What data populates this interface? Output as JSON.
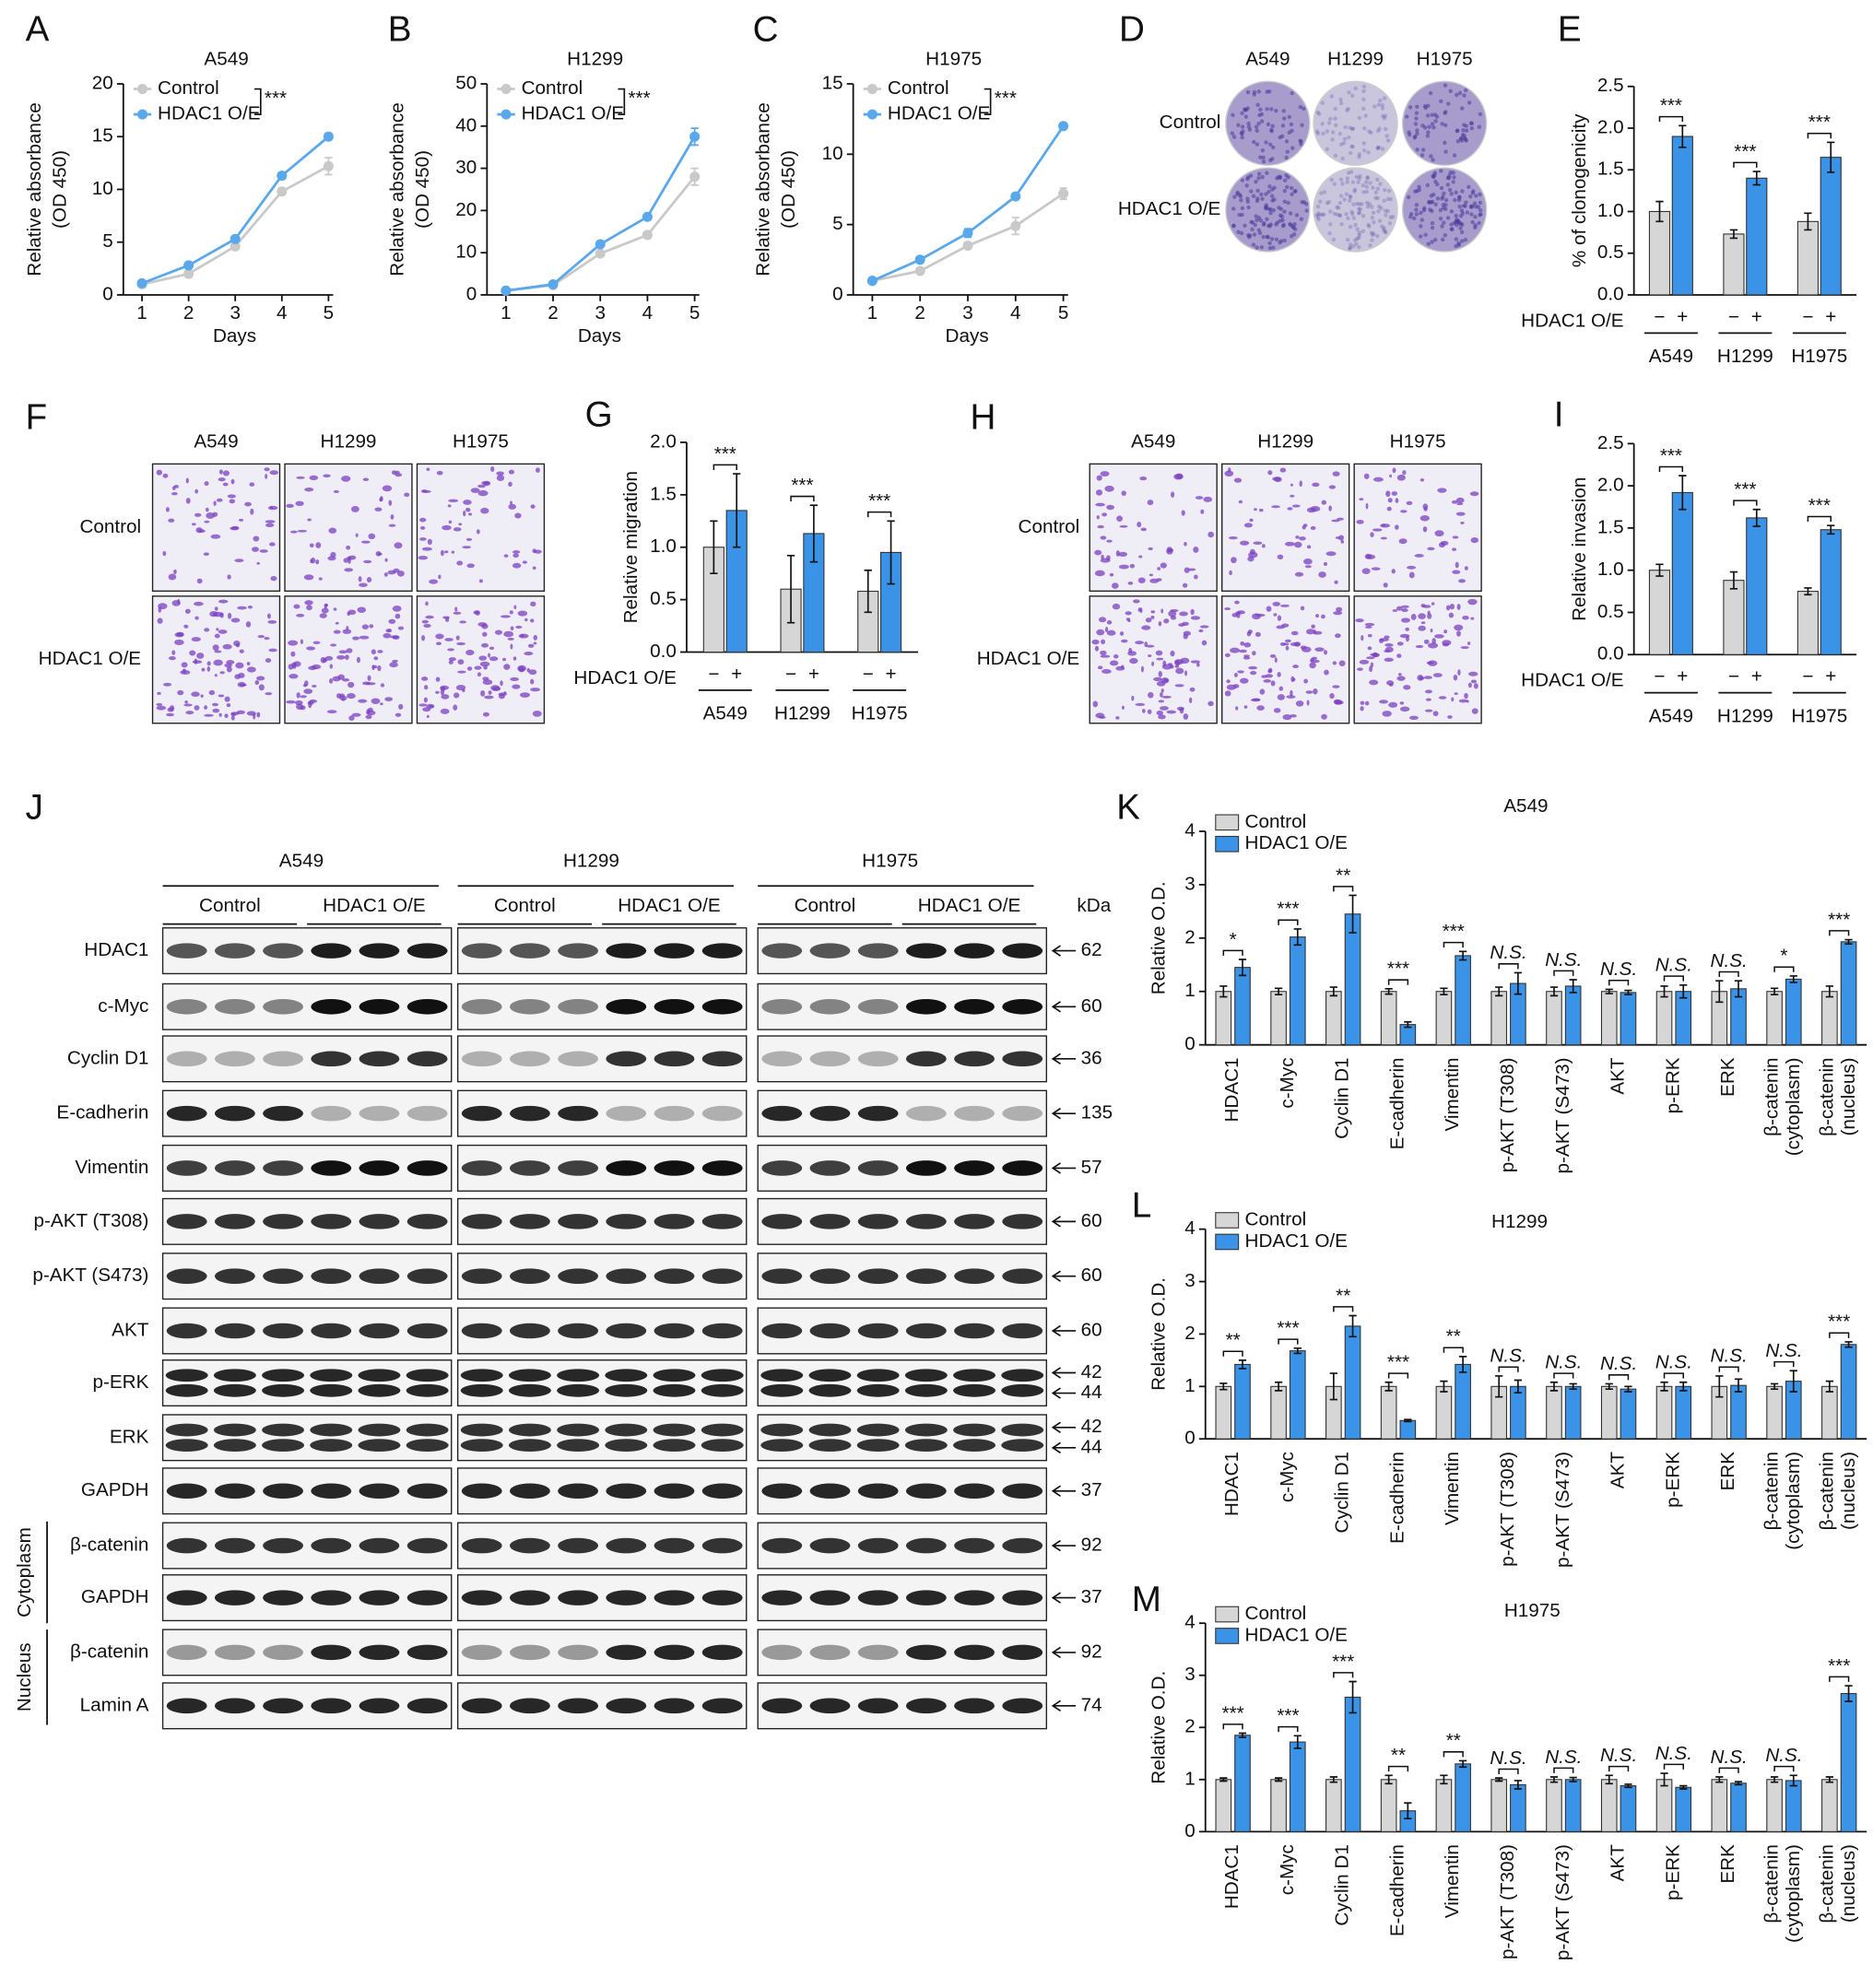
{
  "chart_data": [
    {
      "type": "line",
      "label": "A",
      "title": "A549",
      "ylabel": [
        "Relative absorbance",
        "(OD 450)"
      ],
      "xlabel": "Days",
      "x": [
        1,
        2,
        3,
        4,
        5
      ],
      "xlim": [
        0.6,
        5.1
      ],
      "xticks": [
        1,
        2,
        3,
        4,
        5
      ],
      "ylim": [
        0,
        20
      ],
      "yticks": [
        0,
        5,
        10,
        15,
        20
      ],
      "series": [
        {
          "name": "Control",
          "color": "#c9c9c9",
          "values": [
            1.0,
            2.0,
            4.6,
            9.8,
            12.2
          ],
          "errors": [
            0.1,
            0.3,
            0.2,
            0.3,
            0.8
          ]
        },
        {
          "name": "HDAC1 O/E",
          "color": "#5aa8ec",
          "values": [
            1.1,
            2.8,
            5.3,
            11.3,
            15.0
          ],
          "errors": [
            0.1,
            0.2,
            0.2,
            0.3,
            0.3
          ]
        }
      ],
      "annotation": "***"
    },
    {
      "type": "line",
      "label": "B",
      "title": "H1299",
      "ylabel": [
        "Relative absorbance",
        "(OD 450)"
      ],
      "xlabel": "Days",
      "x": [
        1,
        2,
        3,
        4,
        5
      ],
      "xlim": [
        0.6,
        5.1
      ],
      "xticks": [
        1,
        2,
        3,
        4,
        5
      ],
      "ylim": [
        0,
        50
      ],
      "yticks": [
        0,
        10,
        20,
        30,
        40,
        50
      ],
      "series": [
        {
          "name": "Control",
          "color": "#c9c9c9",
          "values": [
            1.0,
            2.3,
            9.8,
            14.2,
            28.0
          ],
          "errors": [
            0.2,
            0.3,
            0.5,
            0.6,
            2.0
          ]
        },
        {
          "name": "HDAC1 O/E",
          "color": "#5aa8ec",
          "values": [
            1.0,
            2.5,
            12.0,
            18.5,
            37.5
          ],
          "errors": [
            0.2,
            0.3,
            0.5,
            0.6,
            2.0
          ]
        }
      ],
      "annotation": "***"
    },
    {
      "type": "line",
      "label": "C",
      "title": "H1975",
      "ylabel": [
        "Relative absorbance",
        "(OD 450)"
      ],
      "xlabel": "Days",
      "x": [
        1,
        2,
        3,
        4,
        5
      ],
      "xlim": [
        0.6,
        5.1
      ],
      "xticks": [
        1,
        2,
        3,
        4,
        5
      ],
      "ylim": [
        0,
        15
      ],
      "yticks": [
        0,
        5,
        10,
        15
      ],
      "series": [
        {
          "name": "Control",
          "color": "#c9c9c9",
          "values": [
            1.0,
            1.7,
            3.5,
            4.9,
            7.2
          ],
          "errors": [
            0.1,
            0.2,
            0.2,
            0.6,
            0.4
          ]
        },
        {
          "name": "HDAC1 O/E",
          "color": "#5aa8ec",
          "values": [
            1.0,
            2.5,
            4.4,
            7.0,
            12.0
          ],
          "errors": [
            0.1,
            0.2,
            0.3,
            0.2,
            0.2
          ]
        }
      ],
      "annotation": "***"
    },
    {
      "type": "bar",
      "label": "E",
      "ylabel": "% of clonogenicity",
      "row_label": "HDAC1 O/E",
      "categories": [
        "A549",
        "H1299",
        "H1975"
      ],
      "ylim": [
        0,
        2.5
      ],
      "yticks": [
        {
          "value": 0,
          "label": "0.0"
        },
        0.5,
        {
          "value": 1,
          "label": "1.0"
        },
        1.5,
        {
          "value": 2,
          "label": "2.0"
        },
        2.5
      ],
      "series": [
        {
          "name": "−",
          "color": "#d6d6d6",
          "values": [
            1.0,
            0.73,
            0.88
          ],
          "errors": [
            0.12,
            0.05,
            0.1
          ]
        },
        {
          "name": "+",
          "color": "#3a93e6",
          "values": [
            1.9,
            1.4,
            1.65
          ],
          "errors": [
            0.13,
            0.08,
            0.18
          ]
        }
      ],
      "annotations": [
        "***",
        "***",
        "***"
      ]
    },
    {
      "type": "bar",
      "label": "G",
      "ylabel": "Relative migration",
      "row_label": "HDAC1 O/E",
      "categories": [
        "A549",
        "H1299",
        "H1975"
      ],
      "ylim": [
        0,
        2
      ],
      "yticks": [
        {
          "value": 0,
          "label": "0.0"
        },
        0.5,
        {
          "value": 1,
          "label": "1.0"
        },
        1.5,
        {
          "value": 2,
          "label": "2.0"
        }
      ],
      "series": [
        {
          "name": "−",
          "color": "#d6d6d6",
          "values": [
            1.0,
            0.6,
            0.58
          ],
          "errors": [
            0.25,
            0.32,
            0.2
          ]
        },
        {
          "name": "+",
          "color": "#3a93e6",
          "values": [
            1.35,
            1.13,
            0.95
          ],
          "errors": [
            0.35,
            0.27,
            0.3
          ]
        }
      ],
      "annotations": [
        "***",
        "***",
        "***"
      ]
    },
    {
      "type": "bar",
      "label": "I",
      "ylabel": "Relative invasion",
      "row_label": "HDAC1 O/E",
      "categories": [
        "A549",
        "H1299",
        "H1975"
      ],
      "ylim": [
        0,
        2.5
      ],
      "yticks": [
        {
          "value": 0,
          "label": "0.0"
        },
        0.5,
        {
          "value": 1,
          "label": "1.0"
        },
        1.5,
        {
          "value": 2,
          "label": "2.0"
        },
        2.5
      ],
      "series": [
        {
          "name": "−",
          "color": "#d6d6d6",
          "values": [
            1.0,
            0.88,
            0.75
          ],
          "errors": [
            0.07,
            0.1,
            0.04
          ]
        },
        {
          "name": "+",
          "color": "#3a93e6",
          "values": [
            1.92,
            1.62,
            1.48
          ],
          "errors": [
            0.2,
            0.1,
            0.05
          ]
        }
      ],
      "annotations": [
        "***",
        "***",
        "***"
      ]
    },
    {
      "type": "bar",
      "label": "K",
      "title": "A549",
      "ylabel": "Relative O.D.",
      "categories": [
        "HDAC1",
        "c-Myc",
        "Cyclin D1",
        "E-cadherin",
        "Vimentin",
        "p-AKT (T308)",
        "p-AKT (S473)",
        "AKT",
        "p-ERK",
        "ERK",
        "β-catenin\n(cytoplasm)",
        "β-catenin\n(nucleus)"
      ],
      "ylim": [
        0,
        4
      ],
      "yticks": [
        0,
        1,
        2,
        3,
        4
      ],
      "series": [
        {
          "name": "Control",
          "color": "#d6d6d6",
          "values": [
            1.0,
            1.0,
            1.0,
            1.0,
            1.0,
            1.0,
            1.0,
            1.0,
            1.0,
            1.0,
            1.0,
            1.0
          ],
          "errors": [
            0.1,
            0.06,
            0.08,
            0.05,
            0.06,
            0.08,
            0.08,
            0.04,
            0.1,
            0.2,
            0.06,
            0.1
          ]
        },
        {
          "name": "HDAC1 O/E",
          "color": "#3a93e6",
          "values": [
            1.45,
            2.02,
            2.45,
            0.38,
            1.67,
            1.15,
            1.1,
            0.98,
            1.0,
            1.05,
            1.23,
            1.93
          ],
          "errors": [
            0.15,
            0.15,
            0.35,
            0.05,
            0.08,
            0.2,
            0.12,
            0.04,
            0.12,
            0.15,
            0.06,
            0.04
          ]
        }
      ],
      "annotations": [
        "*",
        "***",
        "**",
        "***",
        "***",
        "N.S.",
        "N.S.",
        "N.S.",
        "N.S.",
        "N.S.",
        "*",
        "***"
      ]
    },
    {
      "type": "bar",
      "label": "L",
      "title": "H1299",
      "ylabel": "Relative O.D.",
      "categories": [
        "HDAC1",
        "c-Myc",
        "Cyclin D1",
        "E-cadherin",
        "Vimentin",
        "p-AKT (T308)",
        "p-AKT (S473)",
        "AKT",
        "p-ERK",
        "ERK",
        "β-catenin\n(cytoplasm)",
        "β-catenin\n(nucleus)"
      ],
      "ylim": [
        0,
        4
      ],
      "yticks": [
        0,
        1,
        2,
        3,
        4
      ],
      "series": [
        {
          "name": "Control",
          "color": "#d6d6d6",
          "values": [
            1.0,
            1.0,
            1.0,
            1.0,
            1.0,
            1.0,
            1.0,
            1.0,
            1.0,
            1.0,
            1.0,
            1.0
          ],
          "errors": [
            0.06,
            0.08,
            0.25,
            0.08,
            0.1,
            0.2,
            0.08,
            0.05,
            0.08,
            0.2,
            0.05,
            0.1
          ]
        },
        {
          "name": "HDAC1 O/E",
          "color": "#3a93e6",
          "values": [
            1.42,
            1.68,
            2.15,
            0.35,
            1.42,
            1.0,
            1.0,
            0.95,
            1.0,
            1.02,
            1.1,
            1.8
          ],
          "errors": [
            0.08,
            0.05,
            0.2,
            0.02,
            0.15,
            0.12,
            0.05,
            0.05,
            0.08,
            0.12,
            0.2,
            0.05
          ]
        }
      ],
      "annotations": [
        "**",
        "***",
        "**",
        "***",
        "**",
        "N.S.",
        "N.S.",
        "N.S.",
        "N.S.",
        "N.S.",
        "N.S.",
        "***"
      ]
    },
    {
      "type": "bar",
      "label": "M",
      "title": "H1975",
      "ylabel": "Relative O.D.",
      "categories": [
        "HDAC1",
        "c-Myc",
        "Cyclin D1",
        "E-cadherin",
        "Vimentin",
        "p-AKT (T308)",
        "p-AKT (S473)",
        "AKT",
        "p-ERK",
        "ERK",
        "β-catenin\n(cytoplasm)",
        "β-catenin\n(nucleus)"
      ],
      "ylim": [
        0,
        4
      ],
      "yticks": [
        0,
        1,
        2,
        3,
        4
      ],
      "series": [
        {
          "name": "Control",
          "color": "#d6d6d6",
          "values": [
            1.0,
            1.0,
            1.0,
            1.0,
            1.0,
            1.0,
            1.0,
            1.0,
            1.0,
            1.0,
            1.0,
            1.0
          ],
          "errors": [
            0.03,
            0.03,
            0.05,
            0.08,
            0.08,
            0.03,
            0.05,
            0.08,
            0.12,
            0.05,
            0.05,
            0.05
          ]
        },
        {
          "name": "HDAC1 O/E",
          "color": "#3a93e6",
          "values": [
            1.85,
            1.72,
            2.58,
            0.4,
            1.3,
            0.9,
            1.0,
            0.88,
            0.85,
            0.93,
            0.98,
            2.65
          ],
          "errors": [
            0.04,
            0.12,
            0.3,
            0.15,
            0.06,
            0.08,
            0.04,
            0.03,
            0.03,
            0.03,
            0.1,
            0.15
          ]
        }
      ],
      "annotations": [
        "***",
        "***",
        "***",
        "**",
        "**",
        "N.S.",
        "N.S.",
        "N.S.",
        "N.S.",
        "N.S.",
        "N.S.",
        "***"
      ]
    }
  ],
  "images": [
    {
      "label": "D",
      "columns": [
        "A549",
        "H1299",
        "H1975"
      ],
      "rows": [
        "Control",
        "HDAC1 O/E"
      ]
    },
    {
      "label": "F",
      "columns": [
        "A549",
        "H1299",
        "H1975"
      ],
      "rows": [
        "Control",
        "HDAC1 O/E"
      ]
    },
    {
      "label": "H",
      "columns": [
        "A549",
        "H1299",
        "H1975"
      ],
      "rows": [
        "Control",
        "HDAC1 O/E"
      ]
    }
  ],
  "blot": {
    "label": "J",
    "cell_lines": [
      "A549",
      "H1299",
      "H1975"
    ],
    "groups": [
      "Control",
      "HDAC1 O/E"
    ],
    "unit": "kDa",
    "rows": [
      {
        "name": "HDAC1",
        "kda": [
          62
        ]
      },
      {
        "name": "c-Myc",
        "kda": [
          60
        ]
      },
      {
        "name": "Cyclin D1",
        "kda": [
          36
        ]
      },
      {
        "name": "E-cadherin",
        "kda": [
          135
        ]
      },
      {
        "name": "Vimentin",
        "kda": [
          57
        ]
      },
      {
        "name": "p-AKT (T308)",
        "kda": [
          60
        ]
      },
      {
        "name": "p-AKT (S473)",
        "kda": [
          60
        ]
      },
      {
        "name": "AKT",
        "kda": [
          60
        ]
      },
      {
        "name": "p-ERK",
        "kda": [
          42,
          44
        ]
      },
      {
        "name": "ERK",
        "kda": [
          42,
          44
        ]
      },
      {
        "name": "GAPDH",
        "kda": [
          37
        ]
      },
      {
        "name": "β-catenin",
        "kda": [
          92
        ]
      },
      {
        "name": "GAPDH",
        "kda": [
          37
        ]
      },
      {
        "name": "β-catenin",
        "kda": [
          92
        ]
      },
      {
        "name": "Lamin A",
        "kda": [
          74
        ]
      }
    ],
    "sections": [
      "Cytoplasm",
      "Nucleus"
    ]
  }
}
